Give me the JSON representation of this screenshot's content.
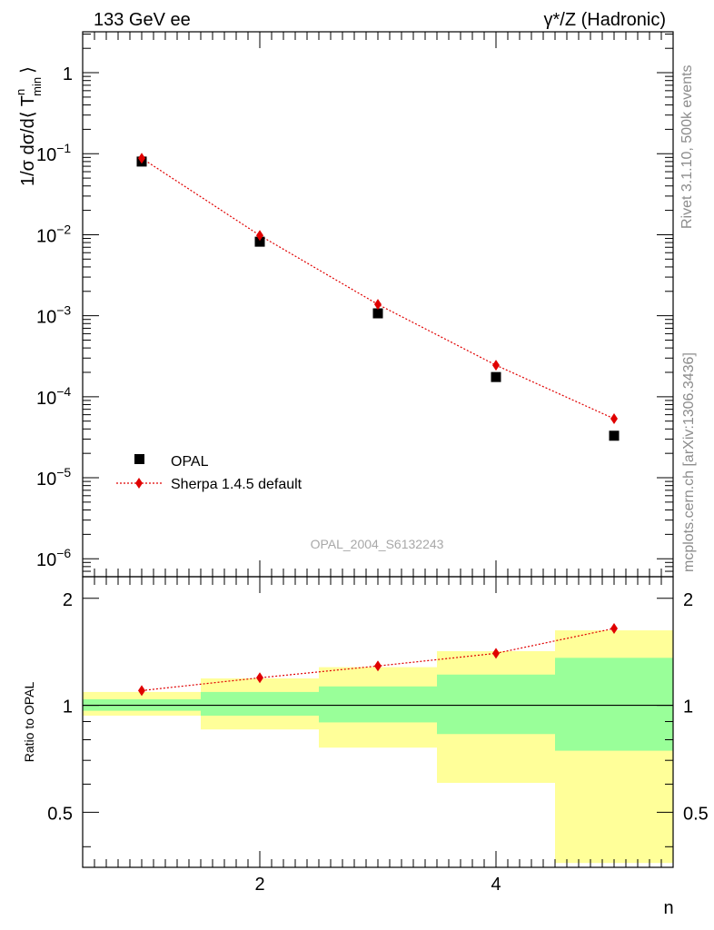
{
  "header": {
    "left": "133 GeV ee",
    "right": "γ*/Z (Hadronic)"
  },
  "side_labels": {
    "rivet": "Rivet 3.1.10,  500k events",
    "mcplots": "mcplots.cern.ch [arXiv:1306.3436]"
  },
  "analysis_id": "OPAL_2004_S6132243",
  "colors": {
    "data": "#000000",
    "mc": "#e00000",
    "band_stat": "#99ff99",
    "band_total": "#ffff99"
  },
  "chart_data": [
    {
      "type": "scatter",
      "panel": "main",
      "ylabel": "1/σ dσ/d⟨ T",
      "ylabel_sup": "n",
      "ylabel_sub": "min",
      "ylabel_close": "⟩",
      "yscale": "log",
      "xlim": [
        0.5,
        5.5
      ],
      "ylim": [
        6e-07,
        3.2
      ],
      "ytick_mantissa": [
        "10",
        "10",
        "10",
        "10",
        "10",
        "10"
      ],
      "ytick_exponents": [
        "−6",
        "−5",
        "−4",
        "−3",
        "−2",
        "−1"
      ],
      "ytick_one": "1",
      "series": [
        {
          "name": "OPAL",
          "marker": "square",
          "x": [
            1,
            2,
            3,
            4,
            5
          ],
          "y": [
            0.08,
            0.0082,
            0.00107,
            0.000175,
            3.3e-05
          ]
        },
        {
          "name": "Sherpa 1.4.5 default",
          "marker": "diamond",
          "line": "dotted",
          "x": [
            1,
            2,
            3,
            4,
            5
          ],
          "y": [
            0.088,
            0.0098,
            0.00138,
            0.000245,
            5.35e-05
          ]
        }
      ]
    },
    {
      "type": "line",
      "panel": "ratio",
      "ylabel": "Ratio to OPAL",
      "xlabel": "n",
      "xlim": [
        0.5,
        5.5
      ],
      "ylim": [
        0.35,
        2.3
      ],
      "xticks": [
        "2",
        "4"
      ],
      "yticks": [
        "0.5",
        "1",
        "2"
      ],
      "reference": 1,
      "bands": {
        "bin_edges": [
          0.5,
          1.5,
          2.5,
          3.5,
          4.5,
          5.5
        ],
        "stat_low": [
          0.965,
          0.935,
          0.895,
          0.83,
          0.745
        ],
        "stat_high": [
          1.04,
          1.09,
          1.13,
          1.22,
          1.36
        ],
        "total_low": [
          0.935,
          0.855,
          0.76,
          0.605,
          0.36
        ],
        "total_high": [
          1.09,
          1.19,
          1.28,
          1.42,
          1.625
        ]
      },
      "series": [
        {
          "name": "Sherpa 1.4.5 default",
          "x": [
            1,
            2,
            3,
            4,
            5
          ],
          "y": [
            1.1,
            1.195,
            1.29,
            1.4,
            1.645
          ]
        }
      ]
    }
  ]
}
